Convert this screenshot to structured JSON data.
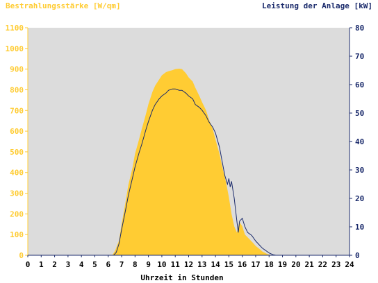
{
  "chart_data": {
    "type": "area",
    "left_axis_label": "Bestrahlungsstärke [W/qm]",
    "right_axis_label": "Leistung der Anlage [kW]",
    "xlabel": "Uhrzeit in Stunden",
    "xlim": [
      0,
      24
    ],
    "ylim_left": [
      0,
      1100
    ],
    "ylim_right": [
      0,
      80
    ],
    "x_ticks": [
      "0",
      "1",
      "2",
      "3",
      "4",
      "5",
      "6",
      "7",
      "8",
      "9",
      "10",
      "11",
      "12",
      "13",
      "14",
      "15",
      "16",
      "17",
      "18",
      "19",
      "20",
      "21",
      "22",
      "23",
      "24"
    ],
    "left_ticks": [
      "0",
      "100",
      "200",
      "300",
      "400",
      "500",
      "600",
      "700",
      "800",
      "900",
      "1000",
      "1100"
    ],
    "right_ticks": [
      "0",
      "10",
      "20",
      "30",
      "40",
      "50",
      "60",
      "70",
      "80"
    ],
    "grid": false,
    "colors": {
      "irradiance": "#ffcc33",
      "power": "#1a2a6b",
      "plot_bg": "#dcdcdc",
      "left_axis": "#ffcc33",
      "right_axis": "#1a2a6b"
    },
    "series": [
      {
        "name": "Bestrahlungsstärke [W/qm]",
        "axis": "left",
        "x": [
          0,
          6.3,
          6.5,
          6.8,
          7.0,
          7.3,
          7.5,
          7.8,
          8.0,
          8.3,
          8.5,
          8.8,
          9.0,
          9.3,
          9.5,
          9.8,
          10.0,
          10.3,
          10.5,
          10.8,
          11.0,
          11.3,
          11.5,
          11.8,
          12.0,
          12.3,
          12.5,
          12.8,
          13.0,
          13.3,
          13.5,
          13.8,
          14.0,
          14.3,
          14.5,
          14.8,
          15.0,
          15.2,
          15.4,
          15.6,
          15.8,
          16.0,
          16.2,
          16.5,
          16.8,
          17.0,
          17.3,
          17.5,
          17.8,
          18.0,
          18.3,
          18.5,
          24
        ],
        "values": [
          0,
          0,
          20,
          70,
          150,
          260,
          340,
          420,
          490,
          560,
          610,
          680,
          730,
          790,
          820,
          850,
          870,
          885,
          890,
          895,
          900,
          902,
          900,
          880,
          860,
          840,
          810,
          770,
          740,
          700,
          660,
          610,
          560,
          490,
          430,
          350,
          280,
          200,
          140,
          110,
          160,
          140,
          100,
          80,
          60,
          45,
          30,
          18,
          8,
          3,
          1,
          0,
          0
        ]
      },
      {
        "name": "Leistung der Anlage [kW]",
        "axis": "right",
        "x": [
          0,
          6.4,
          6.6,
          6.8,
          7.0,
          7.3,
          7.5,
          7.8,
          8.0,
          8.3,
          8.5,
          8.8,
          9.0,
          9.3,
          9.5,
          9.8,
          10.0,
          10.3,
          10.5,
          10.8,
          11.0,
          11.3,
          11.5,
          11.8,
          12.0,
          12.3,
          12.5,
          12.8,
          13.0,
          13.3,
          13.5,
          13.8,
          14.0,
          14.3,
          14.5,
          14.7,
          14.9,
          15.0,
          15.1,
          15.2,
          15.4,
          15.6,
          15.7,
          15.8,
          16.0,
          16.2,
          16.4,
          16.7,
          17.0,
          17.3,
          17.5,
          17.8,
          18.0,
          18.3,
          18.5,
          24
        ],
        "values": [
          0,
          0,
          1,
          4,
          9,
          16,
          21,
          27,
          31,
          36,
          39,
          44,
          47,
          51,
          53,
          55,
          56,
          57,
          58,
          58.5,
          58.5,
          58,
          58,
          57,
          56,
          55,
          53,
          52,
          51,
          49,
          47,
          45,
          43,
          38,
          33,
          28,
          25,
          27,
          24,
          26,
          20,
          12,
          8,
          12,
          13,
          10,
          8,
          7,
          5,
          3.5,
          2.5,
          1.5,
          0.8,
          0.2,
          0,
          0
        ]
      }
    ]
  }
}
